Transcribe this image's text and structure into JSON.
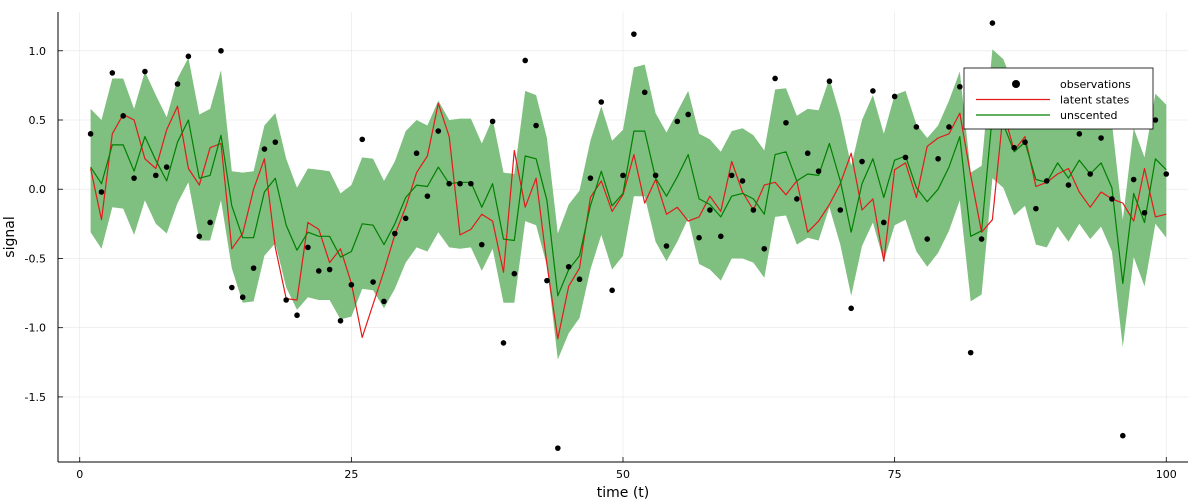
{
  "chart_data": {
    "type": "line",
    "xlabel": "time (t)",
    "ylabel": "signal",
    "xlim": [
      -2,
      102
    ],
    "ylim": [
      -1.97,
      1.28
    ],
    "xticks": [
      0,
      25,
      50,
      75,
      100
    ],
    "yticks": [
      -1.5,
      -1.0,
      -0.5,
      0.0,
      0.5,
      1.0
    ],
    "ytick_labels": [
      "-1.5",
      "-1.0",
      "-0.5",
      "0.0",
      "0.5",
      "1.0"
    ],
    "grid": true,
    "legend_position": "top-right",
    "series": [
      {
        "name": "observations",
        "kind": "scatter",
        "color": "#000000",
        "values": [
          0.4,
          -0.02,
          0.84,
          0.53,
          0.08,
          0.85,
          0.1,
          0.16,
          0.76,
          0.96,
          -0.34,
          -0.24,
          1.0,
          -0.71,
          -0.78,
          -0.57,
          0.29,
          0.34,
          -0.8,
          -0.91,
          -0.42,
          -0.59,
          -0.58,
          -0.95,
          -0.69,
          0.36,
          -0.67,
          -0.81,
          -0.32,
          -0.21,
          0.26,
          -0.05,
          0.42,
          0.04,
          0.04,
          0.04,
          -0.4,
          0.49,
          -1.11,
          -0.61,
          0.93,
          0.46,
          -0.66,
          -1.87,
          -0.56,
          -0.65,
          0.08,
          0.63,
          -0.73,
          0.1,
          1.12,
          0.7,
          0.1,
          -0.41,
          0.49,
          0.54,
          -0.35,
          -0.15,
          -0.34,
          0.1,
          0.06,
          -0.15,
          -0.43,
          0.8,
          0.48,
          -0.07,
          0.26,
          0.13,
          0.78,
          -0.15,
          -0.86,
          0.2,
          0.71,
          -0.24,
          0.67,
          0.23,
          0.45,
          -0.36,
          0.22,
          0.45,
          0.74,
          -1.18,
          -0.36,
          1.2,
          0.67,
          0.3,
          0.34,
          -0.14,
          0.06,
          0.6,
          0.03,
          0.4,
          0.11,
          0.37,
          -0.07,
          -1.78,
          0.07,
          -0.17,
          0.5,
          0.11
        ]
      },
      {
        "name": "latent states",
        "kind": "line",
        "color": "#e41a1c",
        "values": [
          0.15,
          -0.22,
          0.4,
          0.54,
          0.5,
          0.22,
          0.15,
          0.43,
          0.6,
          0.15,
          0.03,
          0.3,
          0.33,
          -0.43,
          -0.32,
          0.0,
          0.22,
          -0.42,
          -0.79,
          -0.8,
          -0.24,
          -0.29,
          -0.53,
          -0.43,
          -0.68,
          -1.07,
          -0.83,
          -0.59,
          -0.33,
          -0.13,
          0.12,
          0.24,
          0.62,
          0.38,
          -0.33,
          -0.29,
          -0.18,
          -0.23,
          -0.6,
          0.28,
          -0.13,
          0.08,
          -0.54,
          -1.08,
          -0.7,
          -0.57,
          -0.06,
          0.06,
          -0.16,
          -0.04,
          0.25,
          -0.1,
          0.07,
          -0.18,
          -0.13,
          -0.23,
          -0.2,
          -0.05,
          -0.16,
          0.2,
          -0.02,
          -0.15,
          0.03,
          0.05,
          -0.04,
          0.06,
          -0.31,
          -0.23,
          -0.11,
          0.04,
          0.26,
          -0.15,
          -0.07,
          -0.52,
          0.14,
          0.19,
          -0.06,
          0.31,
          0.37,
          0.4,
          0.55,
          0.1,
          -0.31,
          -0.22,
          0.56,
          0.28,
          0.38,
          0.02,
          0.05,
          0.11,
          0.15,
          -0.02,
          -0.13,
          -0.02,
          -0.07,
          -0.1,
          -0.23,
          0.15,
          -0.2,
          -0.18
        ]
      },
      {
        "name": "unscented",
        "kind": "line",
        "color": "#008000",
        "values": [
          0.16,
          0.04,
          0.32,
          0.32,
          0.13,
          0.38,
          0.21,
          0.06,
          0.34,
          0.5,
          0.08,
          0.1,
          0.39,
          -0.12,
          -0.35,
          -0.35,
          -0.02,
          0.08,
          -0.26,
          -0.44,
          -0.31,
          -0.34,
          -0.34,
          -0.49,
          -0.45,
          -0.25,
          -0.26,
          -0.4,
          -0.25,
          -0.06,
          0.03,
          0.02,
          0.16,
          0.04,
          0.05,
          0.05,
          -0.13,
          0.04,
          -0.36,
          -0.37,
          0.24,
          0.22,
          -0.08,
          -0.77,
          -0.58,
          -0.48,
          -0.12,
          0.13,
          -0.12,
          -0.03,
          0.42,
          0.42,
          0.08,
          -0.05,
          0.09,
          0.25,
          -0.07,
          -0.11,
          -0.2,
          -0.05,
          -0.03,
          -0.07,
          -0.18,
          0.25,
          0.27,
          0.06,
          0.11,
          0.1,
          0.33,
          0.06,
          -0.31,
          0.04,
          0.22,
          -0.06,
          0.21,
          0.24,
          0.01,
          -0.09,
          0.0,
          0.16,
          0.38,
          -0.34,
          -0.3,
          0.54,
          0.47,
          0.27,
          0.34,
          0.07,
          0.05,
          0.19,
          0.08,
          0.21,
          0.11,
          0.19,
          0.01,
          -0.68,
          -0.03,
          -0.24,
          0.22,
          0.14
        ]
      },
      {
        "name": "",
        "kind": "band-lower",
        "color": "#7fbf7f",
        "values": [
          -0.31,
          -0.43,
          -0.13,
          -0.14,
          -0.33,
          -0.08,
          -0.25,
          -0.32,
          -0.1,
          0.05,
          -0.37,
          -0.37,
          -0.08,
          -0.57,
          -0.82,
          -0.81,
          -0.48,
          -0.39,
          -0.71,
          -0.87,
          -0.78,
          -0.8,
          -0.8,
          -0.94,
          -0.92,
          -0.72,
          -0.73,
          -0.86,
          -0.72,
          -0.53,
          -0.42,
          -0.45,
          -0.31,
          -0.42,
          -0.43,
          -0.42,
          -0.59,
          -0.43,
          -0.82,
          -0.82,
          -0.23,
          -0.26,
          -0.55,
          -1.23,
          -1.04,
          -0.93,
          -0.58,
          -0.33,
          -0.58,
          -0.48,
          -0.05,
          -0.05,
          -0.38,
          -0.52,
          -0.38,
          -0.21,
          -0.54,
          -0.58,
          -0.66,
          -0.5,
          -0.5,
          -0.53,
          -0.64,
          -0.2,
          -0.19,
          -0.4,
          -0.35,
          -0.37,
          -0.13,
          -0.4,
          -0.77,
          -0.41,
          -0.24,
          -0.52,
          -0.26,
          -0.22,
          -0.45,
          -0.56,
          -0.46,
          -0.3,
          -0.08,
          -0.81,
          -0.76,
          0.08,
          0.01,
          -0.19,
          -0.12,
          -0.4,
          -0.42,
          -0.27,
          -0.38,
          -0.25,
          -0.36,
          -0.27,
          -0.45,
          -1.14,
          -0.49,
          -0.7,
          -0.25,
          -0.35
        ]
      },
      {
        "name": "",
        "kind": "band-upper",
        "color": "#7fbf7f",
        "values": [
          0.58,
          0.5,
          0.8,
          0.8,
          0.58,
          0.85,
          0.68,
          0.52,
          0.8,
          0.95,
          0.54,
          0.58,
          0.86,
          0.13,
          0.12,
          0.13,
          0.46,
          0.55,
          0.22,
          0.01,
          0.15,
          0.14,
          0.13,
          -0.03,
          0.03,
          0.23,
          0.22,
          0.06,
          0.2,
          0.42,
          0.5,
          0.46,
          0.64,
          0.5,
          0.51,
          0.51,
          0.33,
          0.51,
          0.12,
          0.11,
          0.71,
          0.68,
          0.37,
          -0.32,
          -0.11,
          -0.01,
          0.35,
          0.6,
          0.35,
          0.43,
          0.88,
          0.9,
          0.55,
          0.41,
          0.56,
          0.71,
          0.4,
          0.36,
          0.27,
          0.42,
          0.44,
          0.39,
          0.28,
          0.72,
          0.73,
          0.53,
          0.58,
          0.57,
          0.8,
          0.53,
          0.17,
          0.5,
          0.68,
          0.4,
          0.68,
          0.71,
          0.47,
          0.37,
          0.46,
          0.64,
          0.85,
          0.12,
          0.17,
          1.01,
          0.94,
          0.74,
          0.81,
          0.53,
          0.52,
          0.66,
          0.55,
          0.68,
          0.58,
          0.66,
          0.48,
          -0.22,
          0.44,
          0.23,
          0.69,
          0.61
        ]
      }
    ]
  }
}
